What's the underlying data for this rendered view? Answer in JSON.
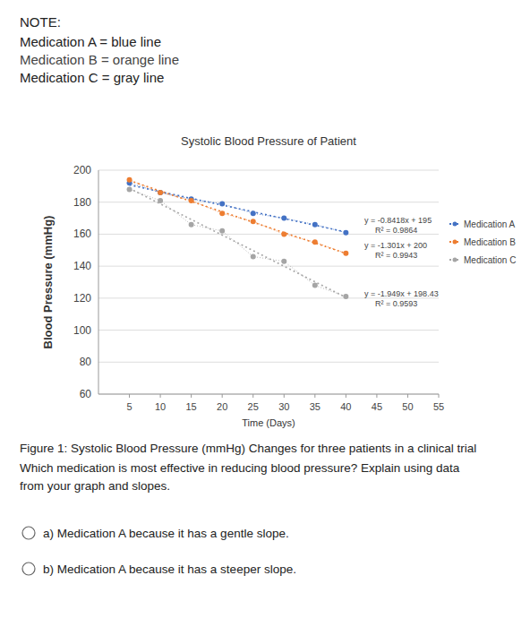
{
  "note": {
    "heading": "NOTE:",
    "lines": [
      "Medication A = blue line",
      "Medication B = orange line",
      "Medication C = gray line"
    ]
  },
  "chart_data": {
    "type": "scatter",
    "title": "Systolic Blood Pressure of Patient",
    "x_label": "Time (Days)",
    "y_label": "Blood Pressure (mmHg)",
    "x": [
      5,
      10,
      15,
      20,
      25,
      30,
      35,
      40
    ],
    "series": [
      {
        "name": "Medication A",
        "color": "#4472c4",
        "marker": "circle",
        "values": [
          192,
          186,
          182,
          179,
          173,
          170,
          166,
          161
        ]
      },
      {
        "name": "Medication B",
        "color": "#ed7d31",
        "marker": "circle",
        "values": [
          194,
          186,
          181,
          173,
          168,
          160,
          155,
          148
        ]
      },
      {
        "name": "Medication C",
        "color": "#a5a5a5",
        "marker": "circle",
        "values": [
          188,
          181,
          166,
          162,
          146,
          143,
          128,
          121
        ]
      }
    ],
    "trendlines": [
      {
        "series": 0,
        "equation": "y = -0.8418x + 195",
        "r2": "R² = 0.9864",
        "slope": -0.8418,
        "intercept": 195
      },
      {
        "series": 1,
        "equation": "y = -1.301x + 200",
        "r2": "R² = 0.9943",
        "slope": -1.301,
        "intercept": 200
      },
      {
        "series": 2,
        "equation": "y = -1.949x + 198.43",
        "r2": "R² = 0.9593",
        "slope": -1.949,
        "intercept": 198.43
      }
    ],
    "xlim": [
      0,
      55
    ],
    "xticks": [
      5,
      10,
      15,
      20,
      25,
      30,
      35,
      40,
      45,
      50,
      55
    ],
    "ylim": [
      60,
      200
    ],
    "yticks": [
      60,
      80,
      100,
      120,
      140,
      160,
      180,
      200
    ],
    "grid": true,
    "legend": "right"
  },
  "caption": "Figure 1: Systolic Blood Pressure (mmHg) Changes for three patients in a clinical trial",
  "question": [
    "Which medication is most effective in reducing blood pressure? Explain using data",
    "from your graph and slopes."
  ],
  "options": [
    "a) Medication A because it has a gentle slope.",
    "b) Medication A because it has a steeper slope."
  ]
}
